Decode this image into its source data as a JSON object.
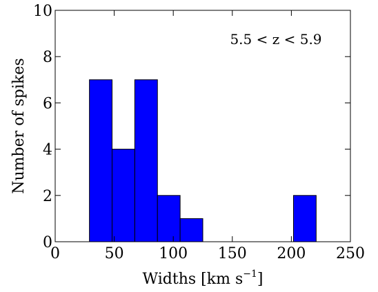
{
  "chart_data": {
    "type": "histogram",
    "annotation": "5.5 < z < 5.9",
    "xlabel": [
      "Widths [km s",
      "−1",
      "]"
    ],
    "ylabel": "Number of spikes",
    "bins": [
      29,
      48.2,
      67.4,
      86.6,
      105.8,
      125,
      144.2,
      163.4,
      182.6,
      201.8,
      221
    ],
    "counts": [
      7,
      4,
      7,
      2,
      1,
      0,
      0,
      0,
      0,
      2
    ],
    "color": "#0000ff",
    "xlim": [
      0,
      250
    ],
    "xticks": [
      0,
      50,
      100,
      150,
      200,
      250
    ],
    "ylim": [
      0,
      10
    ],
    "yticks": [
      0,
      2,
      4,
      6,
      8,
      10
    ]
  }
}
